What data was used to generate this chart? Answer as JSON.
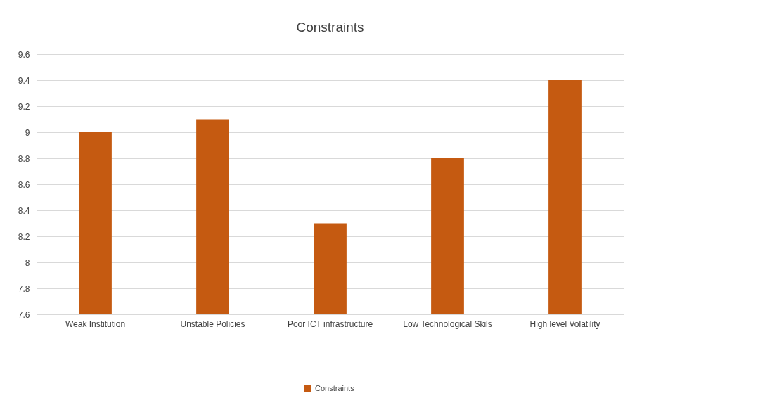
{
  "chart_data": {
    "type": "bar",
    "title": "Constraints",
    "categories": [
      "Weak Institution",
      "Unstable Policies",
      "Poor ICT infrastructure",
      "Low Technological Skils",
      "High level Volatility"
    ],
    "series": [
      {
        "name": "Constraints",
        "color": "#c55a11",
        "values": [
          9.0,
          9.1,
          8.3,
          8.8,
          9.4
        ]
      }
    ],
    "ylim": [
      7.6,
      9.6
    ],
    "yticks": [
      7.6,
      7.8,
      8,
      8.2,
      8.4,
      8.6,
      8.8,
      9,
      9.2,
      9.4,
      9.6
    ],
    "grid": "y",
    "legend": "bottom"
  }
}
